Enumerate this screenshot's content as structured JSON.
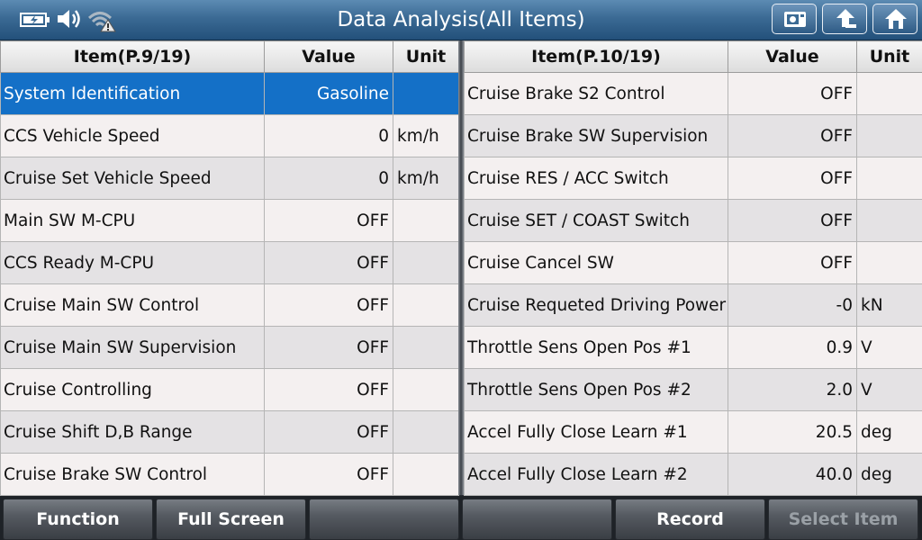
{
  "header": {
    "title": "Data Analysis(All Items)",
    "icons": [
      "battery-icon",
      "speaker-icon",
      "wifi-warning-icon"
    ],
    "buttons": [
      "screenshot-button",
      "back-button",
      "home-button"
    ]
  },
  "left_table": {
    "headers": {
      "item": "Item(P.9/19)",
      "value": "Value",
      "unit": "Unit"
    },
    "rows": [
      {
        "name": "System Identification",
        "value": "Gasoline",
        "unit": ""
      },
      {
        "name": "CCS Vehicle Speed",
        "value": "0",
        "unit": "km/h"
      },
      {
        "name": "Cruise Set Vehicle Speed",
        "value": "0",
        "unit": "km/h"
      },
      {
        "name": "Main SW M-CPU",
        "value": "OFF",
        "unit": ""
      },
      {
        "name": "CCS Ready M-CPU",
        "value": "OFF",
        "unit": ""
      },
      {
        "name": "Cruise Main SW Control",
        "value": "OFF",
        "unit": ""
      },
      {
        "name": "Cruise Main SW Supervision",
        "value": "OFF",
        "unit": ""
      },
      {
        "name": "Cruise Controlling",
        "value": "OFF",
        "unit": ""
      },
      {
        "name": "Cruise Shift D,B Range",
        "value": "OFF",
        "unit": ""
      },
      {
        "name": "Cruise Brake SW Control",
        "value": "OFF",
        "unit": ""
      }
    ]
  },
  "right_table": {
    "headers": {
      "item": "Item(P.10/19)",
      "value": "Value",
      "unit": "Unit"
    },
    "rows": [
      {
        "name": "Cruise Brake S2 Control",
        "value": "OFF",
        "unit": ""
      },
      {
        "name": "Cruise Brake SW Supervision",
        "value": "OFF",
        "unit": ""
      },
      {
        "name": "Cruise RES / ACC Switch",
        "value": "OFF",
        "unit": ""
      },
      {
        "name": "Cruise SET / COAST Switch",
        "value": "OFF",
        "unit": ""
      },
      {
        "name": "Cruise Cancel SW",
        "value": "OFF",
        "unit": ""
      },
      {
        "name": "Cruise Requeted Driving Power",
        "value": "-0",
        "unit": "kN"
      },
      {
        "name": "Throttle Sens Open Pos #1",
        "value": "0.9",
        "unit": "V"
      },
      {
        "name": "Throttle Sens Open Pos #2",
        "value": "2.0",
        "unit": "V"
      },
      {
        "name": "Accel Fully Close Learn #1",
        "value": "20.5",
        "unit": "deg"
      },
      {
        "name": "Accel Fully Close Learn #2",
        "value": "40.0",
        "unit": "deg"
      }
    ]
  },
  "toolbar": {
    "function": "Function",
    "full_screen": "Full Screen",
    "empty1": "",
    "empty2": "",
    "record": "Record",
    "select_item": "Select Item"
  },
  "colors": {
    "selected": "#1470c7",
    "titlebar": "#3b6a94"
  }
}
